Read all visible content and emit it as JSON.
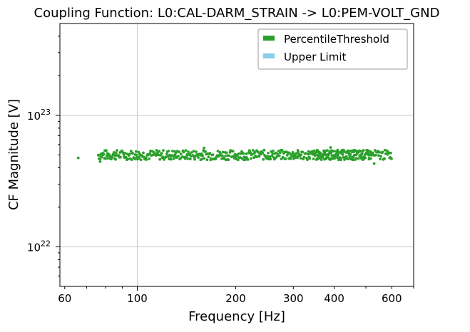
{
  "chart_data": {
    "type": "scatter",
    "title": "Coupling Function: L0:CAL-DARM_STRAIN -> L0:PEM-VOLT_GND",
    "xlabel": "Frequency [Hz]",
    "ylabel": "CF Magnitude [V]",
    "xscale": "log",
    "yscale": "log",
    "xlim": [
      58,
      700
    ],
    "ylim": [
      5e+21,
      5e+23
    ],
    "x_ticks": [
      {
        "value": 60,
        "label": "60"
      },
      {
        "value": 100,
        "label": "100"
      },
      {
        "value": 200,
        "label": "200"
      },
      {
        "value": 300,
        "label": "300"
      },
      {
        "value": 400,
        "label": "400"
      },
      {
        "value": 600,
        "label": "600"
      }
    ],
    "y_ticks": [
      {
        "value": 1e+22,
        "base": "10",
        "exp": "22"
      },
      {
        "value": 1e+23,
        "base": "10",
        "exp": "23"
      }
    ],
    "grid": true,
    "legend_position": "top-right",
    "series": [
      {
        "name": "PercentileThreshold",
        "color": "#2ca02c",
        "marker": "dot",
        "value_range": [
          4.3e+22,
          5.7e+22
        ],
        "typical": 5e+22,
        "x_range": [
          66,
          600
        ]
      },
      {
        "name": "Upper Limit",
        "color": "#87ceeb",
        "marker": "dot",
        "points": []
      }
    ]
  }
}
